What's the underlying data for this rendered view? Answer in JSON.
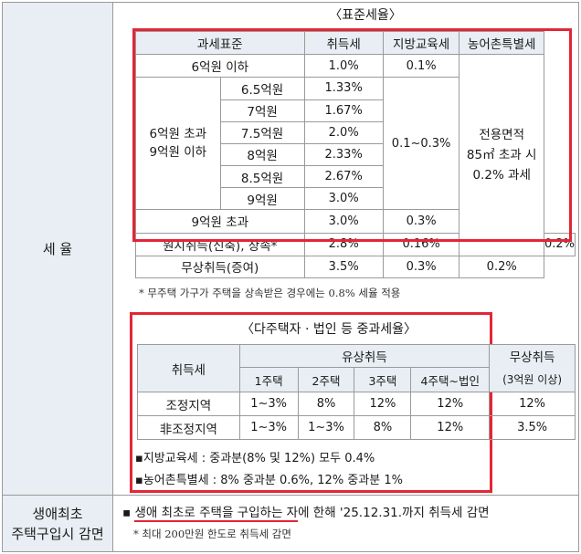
{
  "tax_rate": {
    "row_label": "세 율",
    "standard": {
      "title": "〈표준세율〉",
      "headers": [
        "과세표준",
        "취득세",
        "지방교육세",
        "농어촌특별세"
      ],
      "row_le6": {
        "label": "6억원 이하",
        "acq": "1.0%",
        "edu": "0.1%"
      },
      "mid_label_1": "6억원 초과",
      "mid_label_2": "9억원 이하",
      "mid_rows": [
        {
          "label": "6.5억원",
          "acq": "1.33%"
        },
        {
          "label": "7억원",
          "acq": "1.67%"
        },
        {
          "label": "7.5억원",
          "acq": "2.0%"
        },
        {
          "label": "8억원",
          "acq": "2.33%"
        },
        {
          "label": "8.5억원",
          "acq": "2.67%"
        },
        {
          "label": "9억원",
          "acq": "3.0%"
        }
      ],
      "mid_edu": "0.1~0.3%",
      "rural_1": "전용면적",
      "rural_2": "85㎡ 초과 시",
      "rural_3": "0.2% 과세",
      "row_gt9": {
        "label": "9억원 초과",
        "acq": "3.0%",
        "edu": "0.3%"
      },
      "row_orig": {
        "label": "원시취득(신축), 상속*",
        "acq": "2.8%",
        "edu": "0.16%",
        "rural": "0.2%"
      },
      "row_gift": {
        "label": "무상취득(증여)",
        "acq": "3.5%",
        "edu": "0.3%",
        "rural": "0.2%"
      },
      "note": "* 무주택 가구가 주택을 상속받은 경우에는 0.8% 세율 적용"
    },
    "heavy": {
      "title": "〈다주택자 · 법인 등 중과세율〉",
      "acq_header": "취득세",
      "paid_header": "유상취득",
      "free_header_1": "무상취득",
      "free_header_2": "(3억원 이상)",
      "sub_headers": [
        "1주택",
        "2주택",
        "3주택",
        "4주택~법인"
      ],
      "rows": [
        {
          "region": "조정지역",
          "values": [
            "1~3%",
            "8%",
            "12%",
            "12%",
            "12%"
          ]
        },
        {
          "region": "非조정지역",
          "values": [
            "1~3%",
            "1~3%",
            "8%",
            "12%",
            "3.5%"
          ]
        }
      ],
      "bullet_1": "지방교육세 : 중과분(8% 및 12%) 모두 0.4%",
      "bullet_2": "농어촌특별세 : 8% 중과분 0.6%, 12% 중과분 1%"
    }
  },
  "first_home": {
    "label_1": "생애최초",
    "label_2": "주택구입시 감면",
    "bullet_pre": "생애 최초로 주택을 구입하는 자",
    "bullet_post": "에 한해 '25.12.31.까지 취득세 감면",
    "note": "* 최대 200만원 한도로 취득세 감면"
  },
  "colors": {
    "highlight_border": "#e32636",
    "header_fill": "#e8eef3",
    "grid": "#9a9a9a"
  }
}
